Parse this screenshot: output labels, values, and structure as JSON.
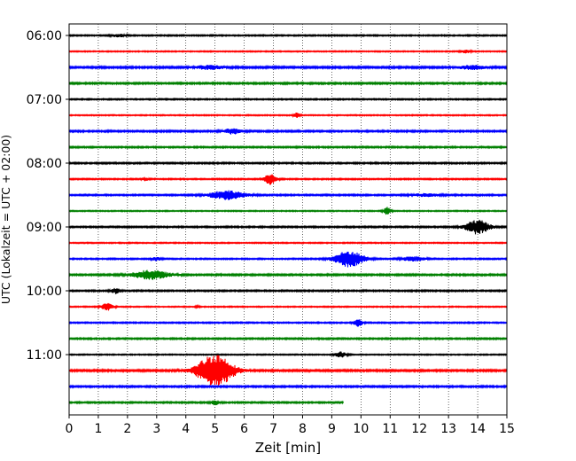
{
  "chart_data": {
    "type": "line",
    "title": "",
    "xlabel": "Zeit  [min]",
    "ylabel": "UTC (Lokalzeit = UTC + 02:00)",
    "xlim": [
      0,
      15
    ],
    "x_ticks": [
      "0",
      "1",
      "2",
      "3",
      "4",
      "5",
      "6",
      "7",
      "8",
      "9",
      "10",
      "11",
      "12",
      "13",
      "14",
      "15"
    ],
    "y_ticks": [
      "06:00",
      "07:00",
      "08:00",
      "09:00",
      "10:00",
      "11:00"
    ],
    "trace_interval_min": 15,
    "grid": "vertical dotted at each minute",
    "trace_colors": [
      "#000000",
      "#ff0000",
      "#0000ff",
      "#008000"
    ],
    "traces": [
      {
        "start": "06:00",
        "color": "#000000",
        "noise": 0.7,
        "events": [
          {
            "t": 1.7,
            "amp": 1.5,
            "width": 0.25
          }
        ]
      },
      {
        "start": "06:15",
        "color": "#ff0000",
        "noise": 0.6,
        "events": [
          {
            "t": 13.6,
            "amp": 2.0,
            "width": 0.15
          }
        ]
      },
      {
        "start": "06:30",
        "color": "#0000ff",
        "noise": 1.0,
        "events": [
          {
            "t": 4.8,
            "amp": 2.0,
            "width": 0.5
          },
          {
            "t": 13.8,
            "amp": 2.0,
            "width": 0.5
          }
        ]
      },
      {
        "start": "06:45",
        "color": "#008000",
        "noise": 0.9,
        "events": []
      },
      {
        "start": "07:00",
        "color": "#000000",
        "noise": 0.7,
        "events": []
      },
      {
        "start": "07:15",
        "color": "#ff0000",
        "noise": 0.6,
        "events": [
          {
            "t": 7.8,
            "amp": 3.0,
            "width": 0.1
          }
        ]
      },
      {
        "start": "07:30",
        "color": "#0000ff",
        "noise": 0.9,
        "events": [
          {
            "t": 5.6,
            "amp": 3.0,
            "width": 0.3
          }
        ]
      },
      {
        "start": "07:45",
        "color": "#008000",
        "noise": 0.8,
        "events": []
      },
      {
        "start": "08:00",
        "color": "#000000",
        "noise": 0.8,
        "events": []
      },
      {
        "start": "08:15",
        "color": "#ff0000",
        "noise": 0.7,
        "events": [
          {
            "t": 2.6,
            "amp": 2.0,
            "width": 0.1
          },
          {
            "t": 6.9,
            "amp": 6.0,
            "width": 0.2
          }
        ]
      },
      {
        "start": "08:30",
        "color": "#0000ff",
        "noise": 0.8,
        "events": [
          {
            "t": 5.4,
            "amp": 5.0,
            "width": 0.6
          },
          {
            "t": 12.2,
            "amp": 1.5,
            "width": 0.5
          }
        ]
      },
      {
        "start": "08:45",
        "color": "#008000",
        "noise": 0.6,
        "events": [
          {
            "t": 10.9,
            "amp": 4.0,
            "width": 0.12
          }
        ]
      },
      {
        "start": "09:00",
        "color": "#000000",
        "noise": 0.8,
        "events": [
          {
            "t": 14.0,
            "amp": 8.0,
            "width": 0.4
          }
        ]
      },
      {
        "start": "09:15",
        "color": "#ff0000",
        "noise": 0.6,
        "events": []
      },
      {
        "start": "09:30",
        "color": "#0000ff",
        "noise": 0.7,
        "events": [
          {
            "t": 3.0,
            "amp": 2.0,
            "width": 0.15
          },
          {
            "t": 9.6,
            "amp": 9.0,
            "width": 0.5
          },
          {
            "t": 11.8,
            "amp": 2.5,
            "width": 0.4
          }
        ]
      },
      {
        "start": "09:45",
        "color": "#008000",
        "noise": 0.9,
        "events": [
          {
            "t": 2.8,
            "amp": 5.0,
            "width": 0.6
          }
        ]
      },
      {
        "start": "10:00",
        "color": "#000000",
        "noise": 0.8,
        "events": [
          {
            "t": 1.6,
            "amp": 3.0,
            "width": 0.15
          }
        ]
      },
      {
        "start": "10:15",
        "color": "#ff0000",
        "noise": 0.6,
        "events": [
          {
            "t": 1.3,
            "amp": 4.0,
            "width": 0.2
          },
          {
            "t": 4.4,
            "amp": 2.0,
            "width": 0.05
          }
        ]
      },
      {
        "start": "10:30",
        "color": "#0000ff",
        "noise": 0.7,
        "events": [
          {
            "t": 9.9,
            "amp": 4.0,
            "width": 0.15
          }
        ]
      },
      {
        "start": "10:45",
        "color": "#008000",
        "noise": 0.8,
        "events": []
      },
      {
        "start": "11:00",
        "color": "#000000",
        "noise": 0.6,
        "events": [
          {
            "t": 9.3,
            "amp": 3.0,
            "width": 0.2
          }
        ]
      },
      {
        "start": "11:15",
        "color": "#ff0000",
        "noise": 1.0,
        "events": [
          {
            "t": 5.0,
            "amp": 19.0,
            "width": 0.6
          }
        ]
      },
      {
        "start": "11:30",
        "color": "#0000ff",
        "noise": 0.9,
        "events": []
      },
      {
        "start": "11:45",
        "color": "#008000",
        "noise": 0.8,
        "end_min": 9.4,
        "events": [
          {
            "t": 5.0,
            "amp": 2.5,
            "width": 0.15
          }
        ]
      }
    ]
  }
}
